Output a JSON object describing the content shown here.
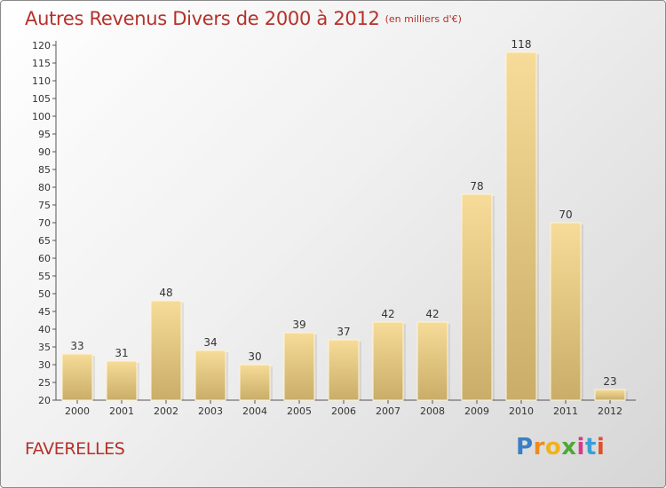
{
  "title": "Autres Revenus Divers de 2000 à 2012",
  "subtitle": "(en milliers d'€)",
  "commune": "FAVERELLES",
  "brand": {
    "p": "P",
    "r": "r",
    "o": "o",
    "x": "x",
    "i1": "i",
    "t": "t",
    "i2": "i"
  },
  "colors": {
    "title": "#b5312a",
    "bar_light": "#f6dc98",
    "bar_dark": "#c9ad68"
  },
  "chart_data": {
    "type": "bar",
    "categories": [
      "2000",
      "2001",
      "2002",
      "2003",
      "2004",
      "2005",
      "2006",
      "2007",
      "2008",
      "2009",
      "2010",
      "2011",
      "2012"
    ],
    "values": [
      33,
      31,
      48,
      34,
      30,
      39,
      37,
      42,
      42,
      78,
      118,
      70,
      23
    ],
    "ylim": [
      20,
      120
    ],
    "yticks": [
      20,
      25,
      30,
      35,
      40,
      45,
      50,
      55,
      60,
      65,
      70,
      75,
      80,
      85,
      90,
      95,
      100,
      105,
      110,
      115,
      120
    ],
    "grid": false,
    "legend": "none"
  }
}
